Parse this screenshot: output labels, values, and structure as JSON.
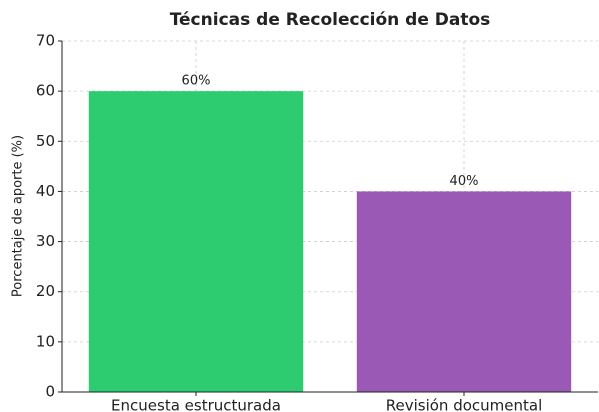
{
  "chart_data": {
    "type": "bar",
    "title": "Técnicas de Recolección de Datos",
    "y_label": "Porcentaje de aporte (%)",
    "categories": [
      "Encuesta estructurada",
      "Revisión documental"
    ],
    "values": [
      60,
      40
    ],
    "value_labels": [
      "60%",
      "40%"
    ],
    "colors": [
      "#2ecc71",
      "#9b59b6"
    ],
    "ylim": [
      0,
      70
    ],
    "yticks": [
      0,
      10,
      20,
      30,
      40,
      50,
      60,
      70
    ],
    "grid": true
  }
}
